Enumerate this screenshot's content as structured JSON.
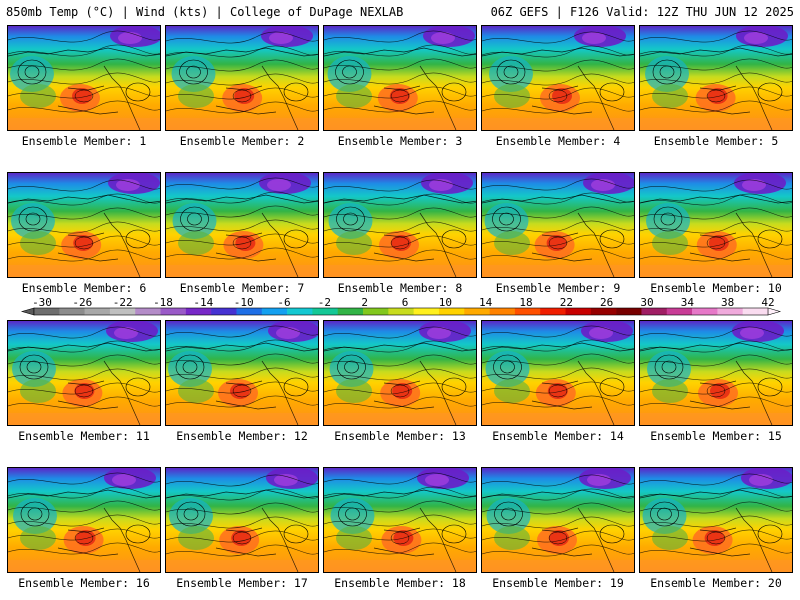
{
  "header": {
    "left_title": "850mb Temp (°C) | Wind (kts) | College of DuPage NEXLAB",
    "right_title": "06Z GEFS | F126 Valid: 12Z THU JUN 12 2025"
  },
  "members": [
    "Ensemble Member: 1",
    "Ensemble Member: 2",
    "Ensemble Member: 3",
    "Ensemble Member: 4",
    "Ensemble Member: 5",
    "Ensemble Member: 6",
    "Ensemble Member: 7",
    "Ensemble Member: 8",
    "Ensemble Member: 9",
    "Ensemble Member: 10",
    "Ensemble Member: 11",
    "Ensemble Member: 12",
    "Ensemble Member: 13",
    "Ensemble Member: 14",
    "Ensemble Member: 15",
    "Ensemble Member: 16",
    "Ensemble Member: 17",
    "Ensemble Member: 18",
    "Ensemble Member: 19",
    "Ensemble Member: 20"
  ],
  "colorbar": {
    "ticks": [
      "-30",
      "-26",
      "-22",
      "-18",
      "-14",
      "-10",
      "-6",
      "-2",
      "2",
      "6",
      "10",
      "14",
      "18",
      "22",
      "26",
      "30",
      "34",
      "38",
      "42"
    ],
    "colors": [
      "#6e6e6e",
      "#8c8c8c",
      "#a8a8a8",
      "#c0c0c0",
      "#b48cc8",
      "#9a5ac8",
      "#7828c8",
      "#4632d2",
      "#1e6ee6",
      "#14a0f0",
      "#14c8d2",
      "#14c896",
      "#32b446",
      "#82c81e",
      "#c8dc1e",
      "#fff01e",
      "#ffd200",
      "#ffaa00",
      "#ff8200",
      "#ff5000",
      "#f01e00",
      "#c80000",
      "#960000",
      "#780000",
      "#a01e64",
      "#c83c96",
      "#e678c8",
      "#f0aadc",
      "#fadcf0"
    ]
  }
}
